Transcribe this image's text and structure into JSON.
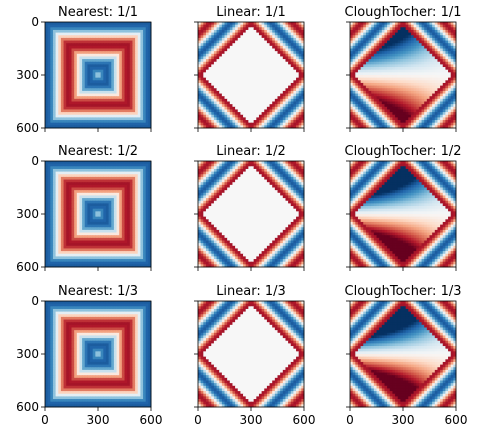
{
  "chart_data": {
    "type": "heatmap",
    "colormap": "RdBu",
    "colors": {
      "red": "#67001f",
      "white": "#f7f7f7",
      "blue": "#053061"
    },
    "axis": {
      "ticks": [
        0,
        300,
        600
      ],
      "xlim": [
        0,
        600
      ],
      "ylim": [
        600,
        0
      ]
    },
    "panels": [
      {
        "title": "Nearest: 1/1",
        "method": "nearest",
        "fraction": 1
      },
      {
        "title": "Linear: 1/1",
        "method": "linear",
        "fraction": 1
      },
      {
        "title": "CloughTocher: 1/1",
        "method": "clough",
        "fraction": 1
      },
      {
        "title": "Nearest: 1/2",
        "method": "nearest",
        "fraction": 0.5
      },
      {
        "title": "Linear: 1/2",
        "method": "linear",
        "fraction": 0.5
      },
      {
        "title": "CloughTocher: 1/2",
        "method": "clough",
        "fraction": 0.5
      },
      {
        "title": "Nearest: 1/3",
        "method": "nearest",
        "fraction": 0.333
      },
      {
        "title": "Linear: 1/3",
        "method": "linear",
        "fraction": 0.333
      },
      {
        "title": "CloughTocher: 1/3",
        "method": "clough",
        "fraction": 0.333
      }
    ]
  }
}
